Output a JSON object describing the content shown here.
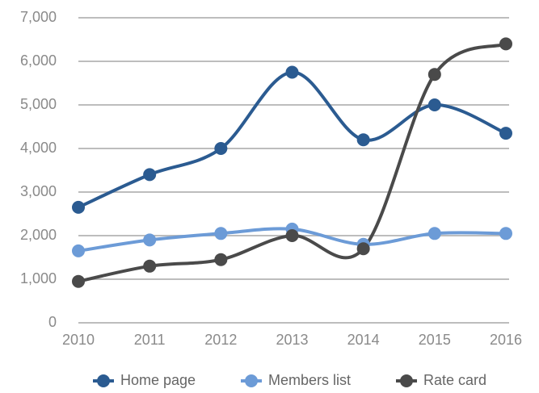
{
  "chart_data": {
    "type": "line",
    "categories": [
      "2010",
      "2011",
      "2012",
      "2013",
      "2014",
      "2015",
      "2016"
    ],
    "series": [
      {
        "name": "Home page",
        "color": "#2b5b91",
        "values": [
          2650,
          3400,
          4000,
          5750,
          4200,
          5000,
          4350
        ]
      },
      {
        "name": "Members list",
        "color": "#6c9bd7",
        "values": [
          1650,
          1900,
          2050,
          2150,
          1800,
          2050,
          2050
        ]
      },
      {
        "name": "Rate card",
        "color": "#4a4a4a",
        "values": [
          950,
          1300,
          1450,
          2000,
          1700,
          5700,
          6400
        ]
      }
    ],
    "ylim": [
      0,
      7000
    ],
    "yticks": [
      0,
      {
        "value": 1000,
        "label": "1,000"
      },
      {
        "value": 2000,
        "label": "2,000"
      },
      {
        "value": 3000,
        "label": "3,000"
      },
      {
        "value": 4000,
        "label": "4,000"
      },
      {
        "value": 5000,
        "label": "5,000"
      },
      {
        "value": 6000,
        "label": "6,000"
      },
      {
        "value": 7000,
        "label": "7,000"
      }
    ],
    "grid": true,
    "smooth": true,
    "legend": "bottom"
  }
}
